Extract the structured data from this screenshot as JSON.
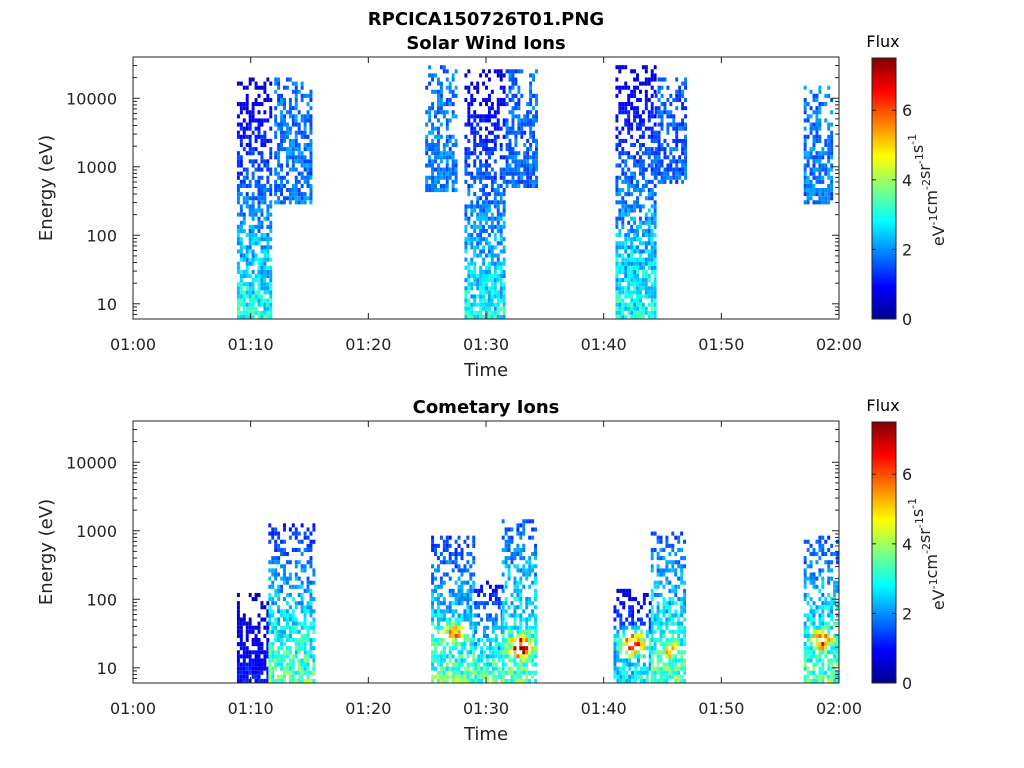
{
  "figure_title": "RPCICA150726T01.PNG",
  "colorbar_label": "Flux",
  "colorbar_unit": [
    "eV",
    "-1",
    "cm",
    "-2",
    "sr",
    "-1",
    "s",
    "-1"
  ],
  "chart_data": [
    {
      "type": "heatmap",
      "title": "Solar Wind Ions",
      "xlabel": "Time",
      "ylabel": "Energy (eV)",
      "x_ticks": [
        "01:00",
        "01:10",
        "01:20",
        "01:30",
        "01:40",
        "01:50",
        "02:00"
      ],
      "xlim": [
        "01:00",
        "02:00"
      ],
      "y_scale": "log",
      "y_ticks": [
        "10",
        "100",
        "1000",
        "10000"
      ],
      "ylim": [
        6,
        40000
      ],
      "colorbar": {
        "label": "Flux",
        "range": [
          0,
          7.5
        ],
        "ticks": [
          "0",
          "2",
          "4",
          "6"
        ]
      },
      "colorscale": "jet",
      "bursts": [
        {
          "start": "01:08:50",
          "end": "01:11:40",
          "energy_range": [
            6,
            20000
          ],
          "flux_low_energy": 3.0,
          "flux_high_energy": 0.5
        },
        {
          "start": "01:12:00",
          "end": "01:15:10",
          "energy_range": [
            300,
            20000
          ],
          "flux": 1.8
        },
        {
          "start": "01:24:50",
          "end": "01:27:30",
          "energy_range": [
            400,
            30000
          ],
          "flux": 1.8
        },
        {
          "start": "01:28:10",
          "end": "01:31:40",
          "energy_range": [
            6,
            25000
          ],
          "flux_low_energy": 2.8,
          "flux_high_energy": 0.6
        },
        {
          "start": "01:31:40",
          "end": "01:34:20",
          "energy_range": [
            500,
            25000
          ],
          "flux": 1.7
        },
        {
          "start": "01:41:00",
          "end": "01:44:20",
          "energy_range": [
            6,
            30000
          ],
          "flux_low_energy": 3.0,
          "flux_high_energy": 0.6
        },
        {
          "start": "01:44:20",
          "end": "01:47:00",
          "energy_range": [
            600,
            20000
          ],
          "flux": 1.6
        },
        {
          "start": "01:57:00",
          "end": "01:59:30",
          "energy_range": [
            300,
            15000
          ],
          "flux": 1.8
        }
      ]
    },
    {
      "type": "heatmap",
      "title": "Cometary Ions",
      "xlabel": "Time",
      "ylabel": "Energy (eV)",
      "x_ticks": [
        "01:00",
        "01:10",
        "01:20",
        "01:30",
        "01:40",
        "01:50",
        "02:00"
      ],
      "xlim": [
        "01:00",
        "02:00"
      ],
      "y_scale": "log",
      "y_ticks": [
        "10",
        "100",
        "1000",
        "10000"
      ],
      "ylim": [
        6,
        40000
      ],
      "colorbar": {
        "label": "Flux",
        "range": [
          0,
          7.5
        ],
        "ticks": [
          "0",
          "2",
          "4",
          "6"
        ]
      },
      "colorscale": "jet",
      "bursts": [
        {
          "start": "01:08:50",
          "end": "01:11:30",
          "energy_range": [
            6,
            120
          ],
          "flux_low_energy": 1.2,
          "flux_high_energy": 0.4
        },
        {
          "start": "01:11:30",
          "end": "01:15:20",
          "energy_range": [
            6,
            1300
          ],
          "flux_low_energy": 3.5,
          "flux_high_energy": 1.2
        },
        {
          "start": "01:25:20",
          "end": "01:29:00",
          "energy_range": [
            6,
            900
          ],
          "flux_low_energy": 3.5,
          "flux_high_energy": 1.2,
          "peak_flux": 5.5,
          "peak_energy": 30
        },
        {
          "start": "01:29:00",
          "end": "01:31:20",
          "energy_range": [
            6,
            200
          ],
          "flux_low_energy": 3.5,
          "flux_high_energy": 0.8
        },
        {
          "start": "01:31:20",
          "end": "01:34:20",
          "energy_range": [
            6,
            1500
          ],
          "flux_low_energy": 3.5,
          "flux_high_energy": 1.5,
          "peak_flux": 7.3,
          "peak_energy": 20
        },
        {
          "start": "01:40:50",
          "end": "01:44:00",
          "energy_range": [
            6,
            150
          ],
          "flux_low_energy": 2.8,
          "flux_high_energy": 0.6,
          "peak_flux": 6.8,
          "peak_energy": 22
        },
        {
          "start": "01:44:00",
          "end": "01:47:00",
          "energy_range": [
            6,
            1000
          ],
          "flux_low_energy": 3.5,
          "flux_high_energy": 1.5,
          "peak_flux": 5.0,
          "peak_energy": 18
        },
        {
          "start": "01:57:00",
          "end": "01:59:50",
          "energy_range": [
            6,
            800
          ],
          "flux_low_energy": 3.5,
          "flux_high_energy": 1.5,
          "peak_flux": 6.5,
          "peak_energy": 25
        }
      ]
    }
  ]
}
